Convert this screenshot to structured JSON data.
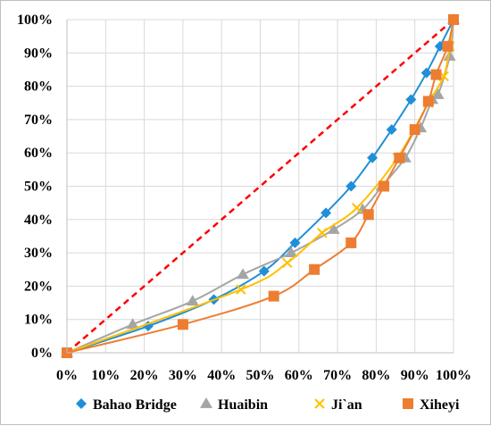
{
  "chart_data": {
    "type": "scatter",
    "title": "",
    "xlabel": "",
    "ylabel": "",
    "xlim": [
      0,
      1
    ],
    "ylim": [
      0,
      1
    ],
    "x_ticks": [
      "0%",
      "10%",
      "20%",
      "30%",
      "40%",
      "50%",
      "60%",
      "70%",
      "80%",
      "90%",
      "100%"
    ],
    "y_ticks": [
      "0%",
      "10%",
      "20%",
      "30%",
      "40%",
      "50%",
      "60%",
      "70%",
      "80%",
      "90%",
      "100%"
    ],
    "grid": true,
    "legend_position": "bottom",
    "reference_line": {
      "x": [
        0,
        1
      ],
      "y": [
        0,
        1
      ],
      "color": "#ff0000",
      "style": "dashed"
    },
    "series": [
      {
        "name": "Bahao Bridge",
        "color": "#1f8fd6",
        "marker": "diamond",
        "points": [
          [
            0,
            0
          ],
          [
            0.21,
            0.08
          ],
          [
            0.38,
            0.16
          ],
          [
            0.51,
            0.245
          ],
          [
            0.59,
            0.33
          ],
          [
            0.67,
            0.42
          ],
          [
            0.735,
            0.5
          ],
          [
            0.79,
            0.585
          ],
          [
            0.84,
            0.67
          ],
          [
            0.89,
            0.76
          ],
          [
            0.93,
            0.84
          ],
          [
            0.965,
            0.92
          ],
          [
            1.0,
            1.0
          ]
        ]
      },
      {
        "name": "Huaibin",
        "color": "#a5a5a5",
        "marker": "triangle",
        "points": [
          [
            0,
            0
          ],
          [
            0.17,
            0.085
          ],
          [
            0.325,
            0.155
          ],
          [
            0.455,
            0.235
          ],
          [
            0.58,
            0.3
          ],
          [
            0.69,
            0.37
          ],
          [
            0.765,
            0.43
          ],
          [
            0.815,
            0.5
          ],
          [
            0.875,
            0.585
          ],
          [
            0.915,
            0.675
          ],
          [
            0.945,
            0.76
          ],
          [
            0.96,
            0.775
          ],
          [
            0.99,
            0.89
          ],
          [
            1.0,
            1.0
          ]
        ]
      },
      {
        "name": "Ji`an",
        "color": "#ffc000",
        "marker": "x",
        "points": [
          [
            0,
            0
          ],
          [
            0.45,
            0.19
          ],
          [
            0.57,
            0.27
          ],
          [
            0.66,
            0.36
          ],
          [
            0.75,
            0.435
          ],
          [
            0.855,
            0.585
          ],
          [
            0.935,
            0.75
          ],
          [
            0.975,
            0.83
          ],
          [
            0.99,
            0.92
          ],
          [
            1.0,
            1.0
          ]
        ]
      },
      {
        "name": "Xiheyi",
        "color": "#ed7d31",
        "marker": "square",
        "points": [
          [
            0,
            0
          ],
          [
            0.3,
            0.085
          ],
          [
            0.535,
            0.17
          ],
          [
            0.64,
            0.25
          ],
          [
            0.735,
            0.33
          ],
          [
            0.78,
            0.415
          ],
          [
            0.82,
            0.5
          ],
          [
            0.86,
            0.585
          ],
          [
            0.9,
            0.67
          ],
          [
            0.935,
            0.755
          ],
          [
            0.955,
            0.835
          ],
          [
            0.985,
            0.92
          ],
          [
            1.0,
            1.0
          ]
        ]
      }
    ]
  }
}
